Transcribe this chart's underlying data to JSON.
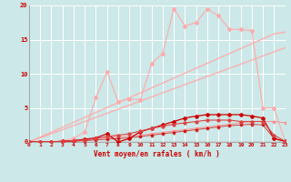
{
  "x": [
    0,
    1,
    2,
    3,
    4,
    5,
    6,
    7,
    8,
    9,
    10,
    11,
    12,
    13,
    14,
    15,
    16,
    17,
    18,
    19,
    20,
    21,
    22,
    23
  ],
  "line_jagged_light": [
    0,
    0,
    0,
    0.2,
    0.5,
    1.5,
    6.5,
    10.3,
    5.9,
    6.3,
    6.2,
    11.5,
    13.0,
    19.5,
    17.0,
    17.5,
    19.5,
    18.5,
    16.5,
    16.5,
    16.3,
    5.0,
    5.0,
    0
  ],
  "line_straight_upper": [
    0,
    0.72,
    1.44,
    2.16,
    2.88,
    3.6,
    4.32,
    5.04,
    5.76,
    6.48,
    7.2,
    7.92,
    8.64,
    9.36,
    10.08,
    10.8,
    11.52,
    12.24,
    12.96,
    13.68,
    14.4,
    15.12,
    15.84,
    16.1
  ],
  "line_straight_lower": [
    0,
    0.6,
    1.2,
    1.8,
    2.4,
    3.0,
    3.6,
    4.2,
    4.8,
    5.4,
    6.0,
    6.6,
    7.2,
    7.8,
    8.4,
    9.0,
    9.6,
    10.2,
    10.8,
    11.4,
    12.0,
    12.6,
    13.2,
    13.8
  ],
  "line_dark_markers": [
    0,
    0,
    0,
    0.1,
    0.2,
    0.4,
    0.6,
    1.2,
    0.0,
    0.5,
    1.5,
    2.0,
    2.5,
    3.0,
    3.5,
    3.8,
    4.0,
    4.0,
    4.0,
    4.0,
    3.8,
    3.5,
    0.5,
    0.1
  ],
  "line_mid_markers": [
    0,
    0,
    0,
    0.1,
    0.2,
    0.3,
    0.5,
    0.8,
    1.0,
    1.2,
    1.6,
    2.0,
    2.3,
    2.6,
    2.8,
    3.0,
    3.2,
    3.2,
    3.2,
    3.0,
    3.0,
    3.0,
    1.0,
    0.1
  ],
  "line_light_flat": [
    0,
    0,
    0,
    0.1,
    0.2,
    0.3,
    0.5,
    0.6,
    0.7,
    0.9,
    1.0,
    1.2,
    1.4,
    1.6,
    1.8,
    2.0,
    2.2,
    2.4,
    2.6,
    2.8,
    3.0,
    3.0,
    3.0,
    2.8
  ],
  "line_lowest": [
    0,
    0,
    0,
    0.05,
    0.1,
    0.2,
    0.3,
    0.4,
    0.5,
    0.6,
    0.8,
    1.0,
    1.2,
    1.4,
    1.6,
    1.8,
    2.0,
    2.2,
    2.4,
    2.5,
    2.6,
    2.5,
    0.5,
    0.05
  ],
  "bg_color": "#cce8e8",
  "grid_color": "#ffffff",
  "color_light_pink": "#ffaaaa",
  "color_med_pink": "#ff8888",
  "color_dark_red": "#cc0000",
  "color_mid_red": "#dd4444",
  "xlabel": "Vent moyen/en rafales ( km/h )",
  "yticks": [
    0,
    5,
    10,
    15,
    20
  ],
  "xticks": [
    0,
    1,
    2,
    3,
    4,
    5,
    6,
    7,
    8,
    9,
    10,
    11,
    12,
    13,
    14,
    15,
    16,
    17,
    18,
    19,
    20,
    21,
    22,
    23
  ],
  "ylim": [
    0,
    20
  ],
  "xlim": [
    0,
    23
  ]
}
